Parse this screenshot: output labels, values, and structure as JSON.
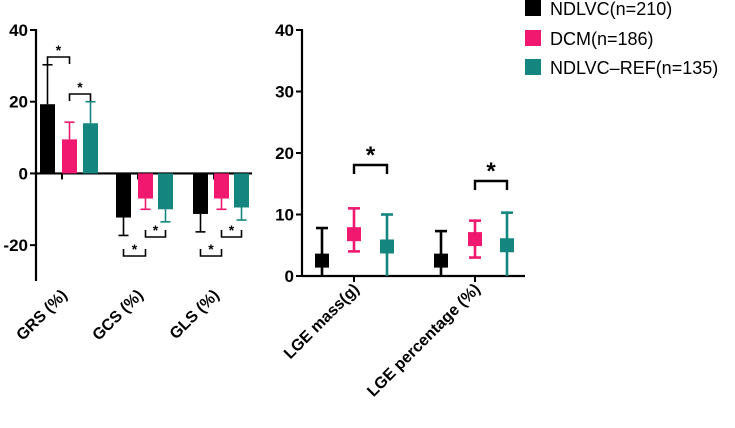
{
  "colors": {
    "NDLVC": "#000000",
    "DCM": "#f0196f",
    "NDLVC-REF": "#14867f"
  },
  "legend": [
    {
      "key": "NDLVC",
      "label": "NDLVC(n=210)"
    },
    {
      "key": "DCM",
      "label": "DCM(n=186)"
    },
    {
      "key": "NDLVC-REF",
      "label": "NDLVC–REF(n=135)"
    }
  ],
  "chart_data": [
    {
      "type": "bar",
      "title": "",
      "xlabel": "",
      "ylabel": "",
      "ylim": [
        -30,
        40
      ],
      "yticks": [
        40,
        20,
        0,
        -20
      ],
      "ytick_labels": [
        "40",
        "20",
        "0",
        "-20"
      ],
      "categories": [
        "GRS (%)",
        "GCS (%)",
        "GLS (%)"
      ],
      "series": [
        {
          "name": "NDLVC(n=210)",
          "key": "NDLVC",
          "values": [
            19.3,
            -12.3,
            -11.3
          ],
          "errors": [
            11.0,
            5.0,
            5.0
          ]
        },
        {
          "name": "DCM(n=186)",
          "key": "DCM",
          "values": [
            9.5,
            -7.0,
            -7.0
          ],
          "errors": [
            4.8,
            3.0,
            3.0
          ]
        },
        {
          "name": "NDLVC–REF(n=135)",
          "key": "NDLVC-REF",
          "values": [
            14.0,
            -10.0,
            -9.5
          ],
          "errors": [
            6.0,
            3.5,
            3.5
          ]
        }
      ],
      "significance": [
        {
          "category": 0,
          "pair": [
            0,
            1
          ],
          "label": "*",
          "side": "top"
        },
        {
          "category": 0,
          "pair": [
            1,
            2
          ],
          "label": "*",
          "side": "top"
        },
        {
          "category": 1,
          "pair": [
            0,
            1
          ],
          "label": "*",
          "side": "bottom"
        },
        {
          "category": 1,
          "pair": [
            1,
            2
          ],
          "label": "*",
          "side": "bottom"
        },
        {
          "category": 2,
          "pair": [
            0,
            1
          ],
          "label": "*",
          "side": "bottom"
        },
        {
          "category": 2,
          "pair": [
            1,
            2
          ],
          "label": "*",
          "side": "bottom"
        }
      ]
    },
    {
      "type": "scatter",
      "title": "",
      "xlabel": "",
      "ylabel": "",
      "ylim": [
        0,
        40
      ],
      "yticks": [
        0,
        10,
        20,
        30,
        40
      ],
      "ytick_labels": [
        "0",
        "10",
        "20",
        "30",
        "40"
      ],
      "categories": [
        "LGE mass(g)",
        "LGE percentage (%)"
      ],
      "series": [
        {
          "name": "NDLVC(n=210)",
          "key": "NDLVC",
          "values": [
            2.5,
            2.5
          ],
          "error_low": [
            0,
            0
          ],
          "error_high": [
            7.8,
            7.3
          ]
        },
        {
          "name": "DCM(n=186)",
          "key": "DCM",
          "values": [
            6.8,
            6.0
          ],
          "error_low": [
            4.0,
            3.0
          ],
          "error_high": [
            11.0,
            9.0
          ]
        },
        {
          "name": "NDLVC–REF(n=135)",
          "key": "NDLVC-REF",
          "values": [
            4.8,
            5.0
          ],
          "error_low": [
            0,
            0
          ],
          "error_high": [
            10.0,
            10.3
          ]
        }
      ],
      "significance": [
        {
          "category": 0,
          "pair": [
            1,
            2
          ],
          "label": "*",
          "side": "top"
        },
        {
          "category": 1,
          "pair": [
            1,
            2
          ],
          "label": "*",
          "side": "top"
        }
      ]
    }
  ]
}
